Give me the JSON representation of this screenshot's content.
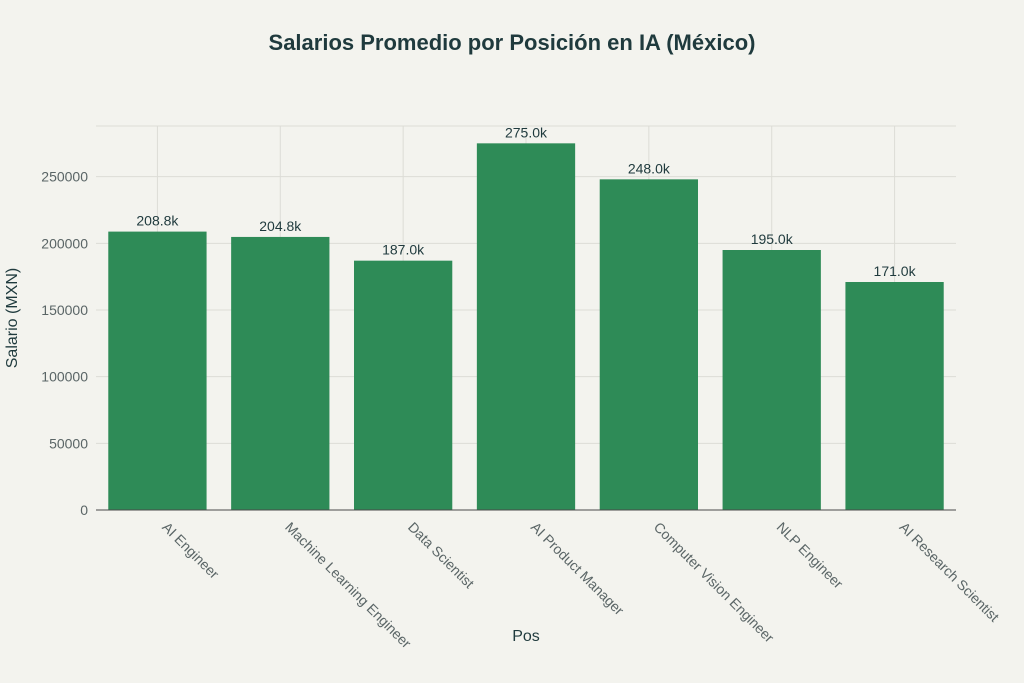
{
  "chart_data": {
    "type": "bar",
    "title": "Salarios Promedio por Posición en IA (México)",
    "xlabel": "Pos",
    "ylabel": "Salario (MXN)",
    "categories": [
      "AI Engineer",
      "Machine Learning Engineer",
      "Data Scientist",
      "AI Product Manager",
      "Computer Vision Engineer",
      "NLP Engineer",
      "AI Research Scientist"
    ],
    "values": [
      208800,
      204800,
      187000,
      275000,
      248000,
      195000,
      171000
    ],
    "data_labels": [
      "208.8k",
      "204.8k",
      "187.0k",
      "275.0k",
      "248.0k",
      "195.0k",
      "171.0k"
    ],
    "ylim": [
      0,
      288000
    ],
    "yticks": [
      0,
      50000,
      100000,
      150000,
      200000,
      250000
    ],
    "ytick_labels": [
      "0",
      "50000",
      "100000",
      "150000",
      "200000",
      "250000"
    ],
    "bar_color": "#2e8b57",
    "grid": true,
    "legend": "none"
  }
}
